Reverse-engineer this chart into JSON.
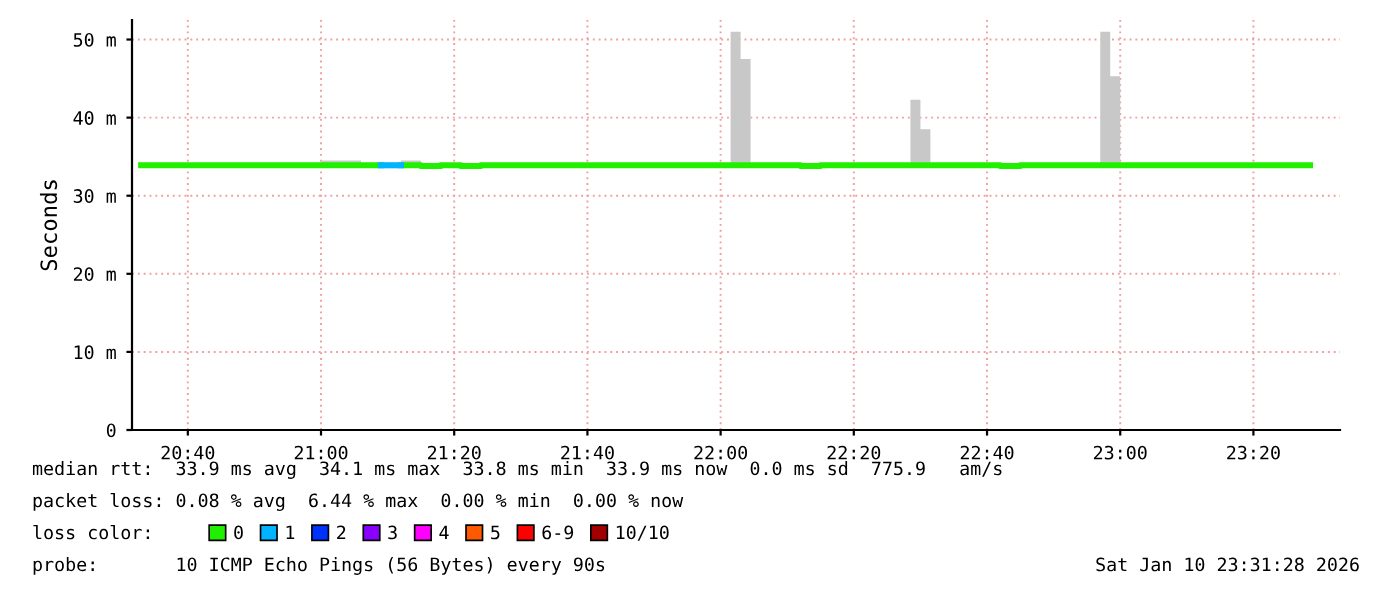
{
  "chart_data": {
    "type": "step",
    "ylabel": "Seconds",
    "legend_title": "loss color:",
    "legend": "bottom",
    "grid": true,
    "line_style": "solid",
    "marker": "none",
    "xlim": [
      20.527,
      23.55
    ],
    "ylim": [
      0,
      52.5
    ],
    "xticks": [
      {
        "value": 20.6667,
        "label": "20:40"
      },
      {
        "value": 21.0,
        "label": "21:00"
      },
      {
        "value": 21.3333,
        "label": "21:20"
      },
      {
        "value": 21.6667,
        "label": "21:40"
      },
      {
        "value": 22.0,
        "label": "22:00"
      },
      {
        "value": 22.3333,
        "label": "22:20"
      },
      {
        "value": 22.6667,
        "label": "22:40"
      },
      {
        "value": 23.0,
        "label": "23:00"
      },
      {
        "value": 23.3333,
        "label": "23:20"
      }
    ],
    "yticks": [
      0,
      {
        "value": 10,
        "label": "10 m"
      },
      {
        "value": 20,
        "label": "20 m"
      },
      {
        "value": 30,
        "label": "30 m"
      },
      {
        "value": 40,
        "label": "40 m"
      },
      {
        "value": 50,
        "label": "50 m"
      }
    ],
    "series": [
      {
        "name": "0",
        "color": "#20f000",
        "x": [
          20.55,
          20.6,
          20.65,
          20.7,
          20.75,
          20.8,
          20.85,
          20.9,
          20.95,
          21.0,
          21.05,
          21.1,
          21.15,
          21.2,
          21.25,
          21.3,
          21.35,
          21.4,
          21.45,
          21.5,
          21.55,
          21.6,
          21.65,
          21.7,
          21.75,
          21.8,
          21.85,
          21.9,
          21.95,
          22.0,
          22.025,
          22.05,
          22.075,
          22.1,
          22.15,
          22.2,
          22.25,
          22.3,
          22.35,
          22.4,
          22.45,
          22.475,
          22.5,
          22.525,
          22.55,
          22.6,
          22.65,
          22.7,
          22.75,
          22.8,
          22.85,
          22.9,
          22.95,
          22.975,
          23.0,
          23.05,
          23.1,
          23.15,
          23.2,
          23.25,
          23.3,
          23.35,
          23.4,
          23.45,
          23.475
        ],
        "values": [
          33.9,
          33.9,
          33.9,
          33.9,
          33.9,
          33.9,
          33.9,
          33.9,
          33.9,
          33.9,
          33.9,
          33.9,
          null,
          33.9,
          33.8,
          33.9,
          33.8,
          33.9,
          33.9,
          33.9,
          33.9,
          33.9,
          33.9,
          33.9,
          33.9,
          33.9,
          33.9,
          33.9,
          33.9,
          33.9,
          33.9,
          33.9,
          33.9,
          33.9,
          33.9,
          33.8,
          33.9,
          33.9,
          33.9,
          33.9,
          33.9,
          33.9,
          33.9,
          33.9,
          33.9,
          33.9,
          33.9,
          33.8,
          33.9,
          33.9,
          33.9,
          33.9,
          33.9,
          33.9,
          33.9,
          33.9,
          33.9,
          33.9,
          33.9,
          33.9,
          33.9,
          33.9,
          33.9,
          33.9,
          33.9
        ],
        "upper": [
          34.2,
          34.2,
          34.2,
          34.2,
          34.2,
          34.2,
          34.2,
          34.2,
          34.2,
          34.5,
          34.5,
          34.2,
          34.2,
          34.5,
          34.2,
          34.2,
          34.2,
          34.2,
          34.2,
          34.2,
          34.2,
          34.2,
          34.2,
          34.2,
          34.2,
          34.2,
          34.2,
          34.2,
          34.2,
          34.2,
          51.0,
          47.5,
          34.2,
          34.2,
          34.2,
          34.2,
          34.2,
          34.2,
          34.2,
          34.2,
          34.2,
          42.3,
          38.5,
          34.2,
          34.2,
          34.2,
          34.2,
          34.2,
          34.2,
          34.2,
          34.2,
          34.2,
          51.0,
          45.3,
          34.2,
          34.2,
          34.2,
          34.2,
          34.2,
          34.2,
          34.2,
          34.2,
          34.2,
          34.2,
          34.2
        ],
        "lower": [
          33.6,
          33.6,
          33.6,
          33.6,
          33.6,
          33.6,
          33.6,
          33.6,
          33.6,
          33.6,
          33.6,
          33.6,
          33.6,
          33.6,
          33.6,
          33.6,
          33.6,
          33.6,
          33.6,
          33.6,
          33.6,
          33.6,
          33.6,
          33.6,
          33.6,
          33.6,
          33.6,
          33.6,
          33.6,
          33.6,
          33.6,
          33.6,
          33.6,
          33.6,
          33.6,
          33.6,
          33.6,
          33.6,
          33.6,
          33.6,
          33.6,
          33.6,
          33.6,
          33.6,
          33.6,
          33.6,
          33.6,
          33.6,
          33.6,
          33.6,
          33.6,
          33.6,
          33.6,
          33.6,
          33.6,
          33.6,
          33.6,
          33.6,
          33.6,
          33.6,
          33.6,
          33.6,
          33.6,
          33.6,
          33.6
        ]
      },
      {
        "name": "1",
        "color": "#00b4ff",
        "x": [
          21.15,
          21.2
        ],
        "values": [
          33.9,
          33.9
        ]
      },
      {
        "name": "2",
        "color": "#0032ff"
      },
      {
        "name": "3",
        "color": "#8a00ff"
      },
      {
        "name": "4",
        "color": "#ff00ff"
      },
      {
        "name": "5",
        "color": "#ff5a00"
      },
      {
        "name": "6-9",
        "color": "#ff0000"
      },
      {
        "name": "10/10",
        "color": "#a00000"
      }
    ],
    "annotations": [
      "median rtt:  33.9 ms avg  34.1 ms max  33.8 ms min  33.9 ms now  0.0 ms sd  775.9   am/s",
      "packet loss: 0.08 % avg  6.44 % max  0.00 % min  0.00 % now",
      "probe:       10 ICMP Echo Pings (56 Bytes) every 90s",
      "Sat Jan 10 23:31:28 2026"
    ]
  }
}
